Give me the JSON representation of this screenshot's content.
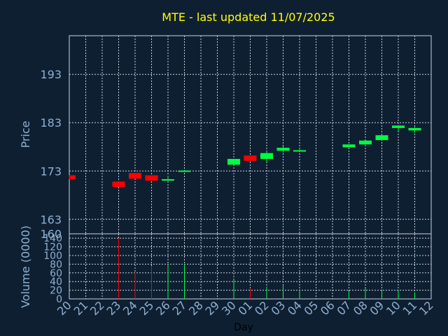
{
  "colors": {
    "background": "#0f1f32",
    "title": "#ffff00",
    "axis_text": "#8fb0d0",
    "up": "#00ff40",
    "down": "#ff0000",
    "grid": "#c8d2dc"
  },
  "chart_data": {
    "type": "candlestick",
    "title": "MTE - last updated 11/07/2025",
    "xlabel": "Day",
    "price_panel": {
      "ylabel": "Price",
      "ylim": [
        160,
        201
      ],
      "ticks": [
        193,
        183,
        173,
        163,
        160
      ]
    },
    "volume_panel": {
      "ylabel": "Volume (0000)",
      "ylim": [
        0,
        150
      ],
      "ticks": [
        140,
        120,
        100,
        80,
        60,
        40,
        20,
        0
      ]
    },
    "x_ticks": [
      "20",
      "21",
      "22",
      "23",
      "24",
      "25",
      "26",
      "27",
      "28",
      "29",
      "30",
      "01",
      "02",
      "03",
      "04",
      "05",
      "06",
      "07",
      "08",
      "09",
      "10",
      "11",
      "12"
    ],
    "grid": true,
    "candles": [
      {
        "day": "20",
        "open": 172.1,
        "close": 171.3,
        "high": 172.1,
        "low": 171.3,
        "volume": 0
      },
      {
        "day": "23",
        "open": 170.8,
        "close": 169.7,
        "high": 170.8,
        "low": 169.7,
        "volume": 140
      },
      {
        "day": "24",
        "open": 172.6,
        "close": 171.4,
        "high": 172.6,
        "low": 171.4,
        "volume": 60
      },
      {
        "day": "25",
        "open": 172.1,
        "close": 171.0,
        "high": 172.1,
        "low": 171.0,
        "volume": 75
      },
      {
        "day": "26",
        "open": 171.1,
        "close": 171.3,
        "high": 172.0,
        "low": 170.9,
        "volume": 80
      },
      {
        "day": "27",
        "open": 172.9,
        "close": 173.1,
        "high": 173.1,
        "low": 172.8,
        "volume": 80
      },
      {
        "day": "30",
        "open": 174.3,
        "close": 175.5,
        "high": 175.5,
        "low": 174.3,
        "volume": 45
      },
      {
        "day": "01",
        "open": 176.2,
        "close": 175.1,
        "high": 176.2,
        "low": 175.0,
        "volume": 25
      },
      {
        "day": "02",
        "open": 175.5,
        "close": 176.7,
        "high": 177.1,
        "low": 174.9,
        "volume": 28
      },
      {
        "day": "03",
        "open": 177.2,
        "close": 177.8,
        "high": 178.2,
        "low": 176.8,
        "volume": 30
      },
      {
        "day": "04",
        "open": 177.1,
        "close": 177.3,
        "high": 177.9,
        "low": 176.9,
        "volume": 22
      },
      {
        "day": "07",
        "open": 177.9,
        "close": 178.5,
        "high": 178.5,
        "low": 177.9,
        "volume": 18
      },
      {
        "day": "08",
        "open": 178.5,
        "close": 179.3,
        "high": 179.3,
        "low": 178.2,
        "volume": 25
      },
      {
        "day": "09",
        "open": 179.4,
        "close": 180.4,
        "high": 180.6,
        "low": 179.2,
        "volume": 20
      },
      {
        "day": "10",
        "open": 181.9,
        "close": 182.4,
        "high": 182.5,
        "low": 181.3,
        "volume": 20
      },
      {
        "day": "11",
        "open": 181.4,
        "close": 181.9,
        "high": 182.1,
        "low": 180.9,
        "volume": 15
      }
    ]
  }
}
